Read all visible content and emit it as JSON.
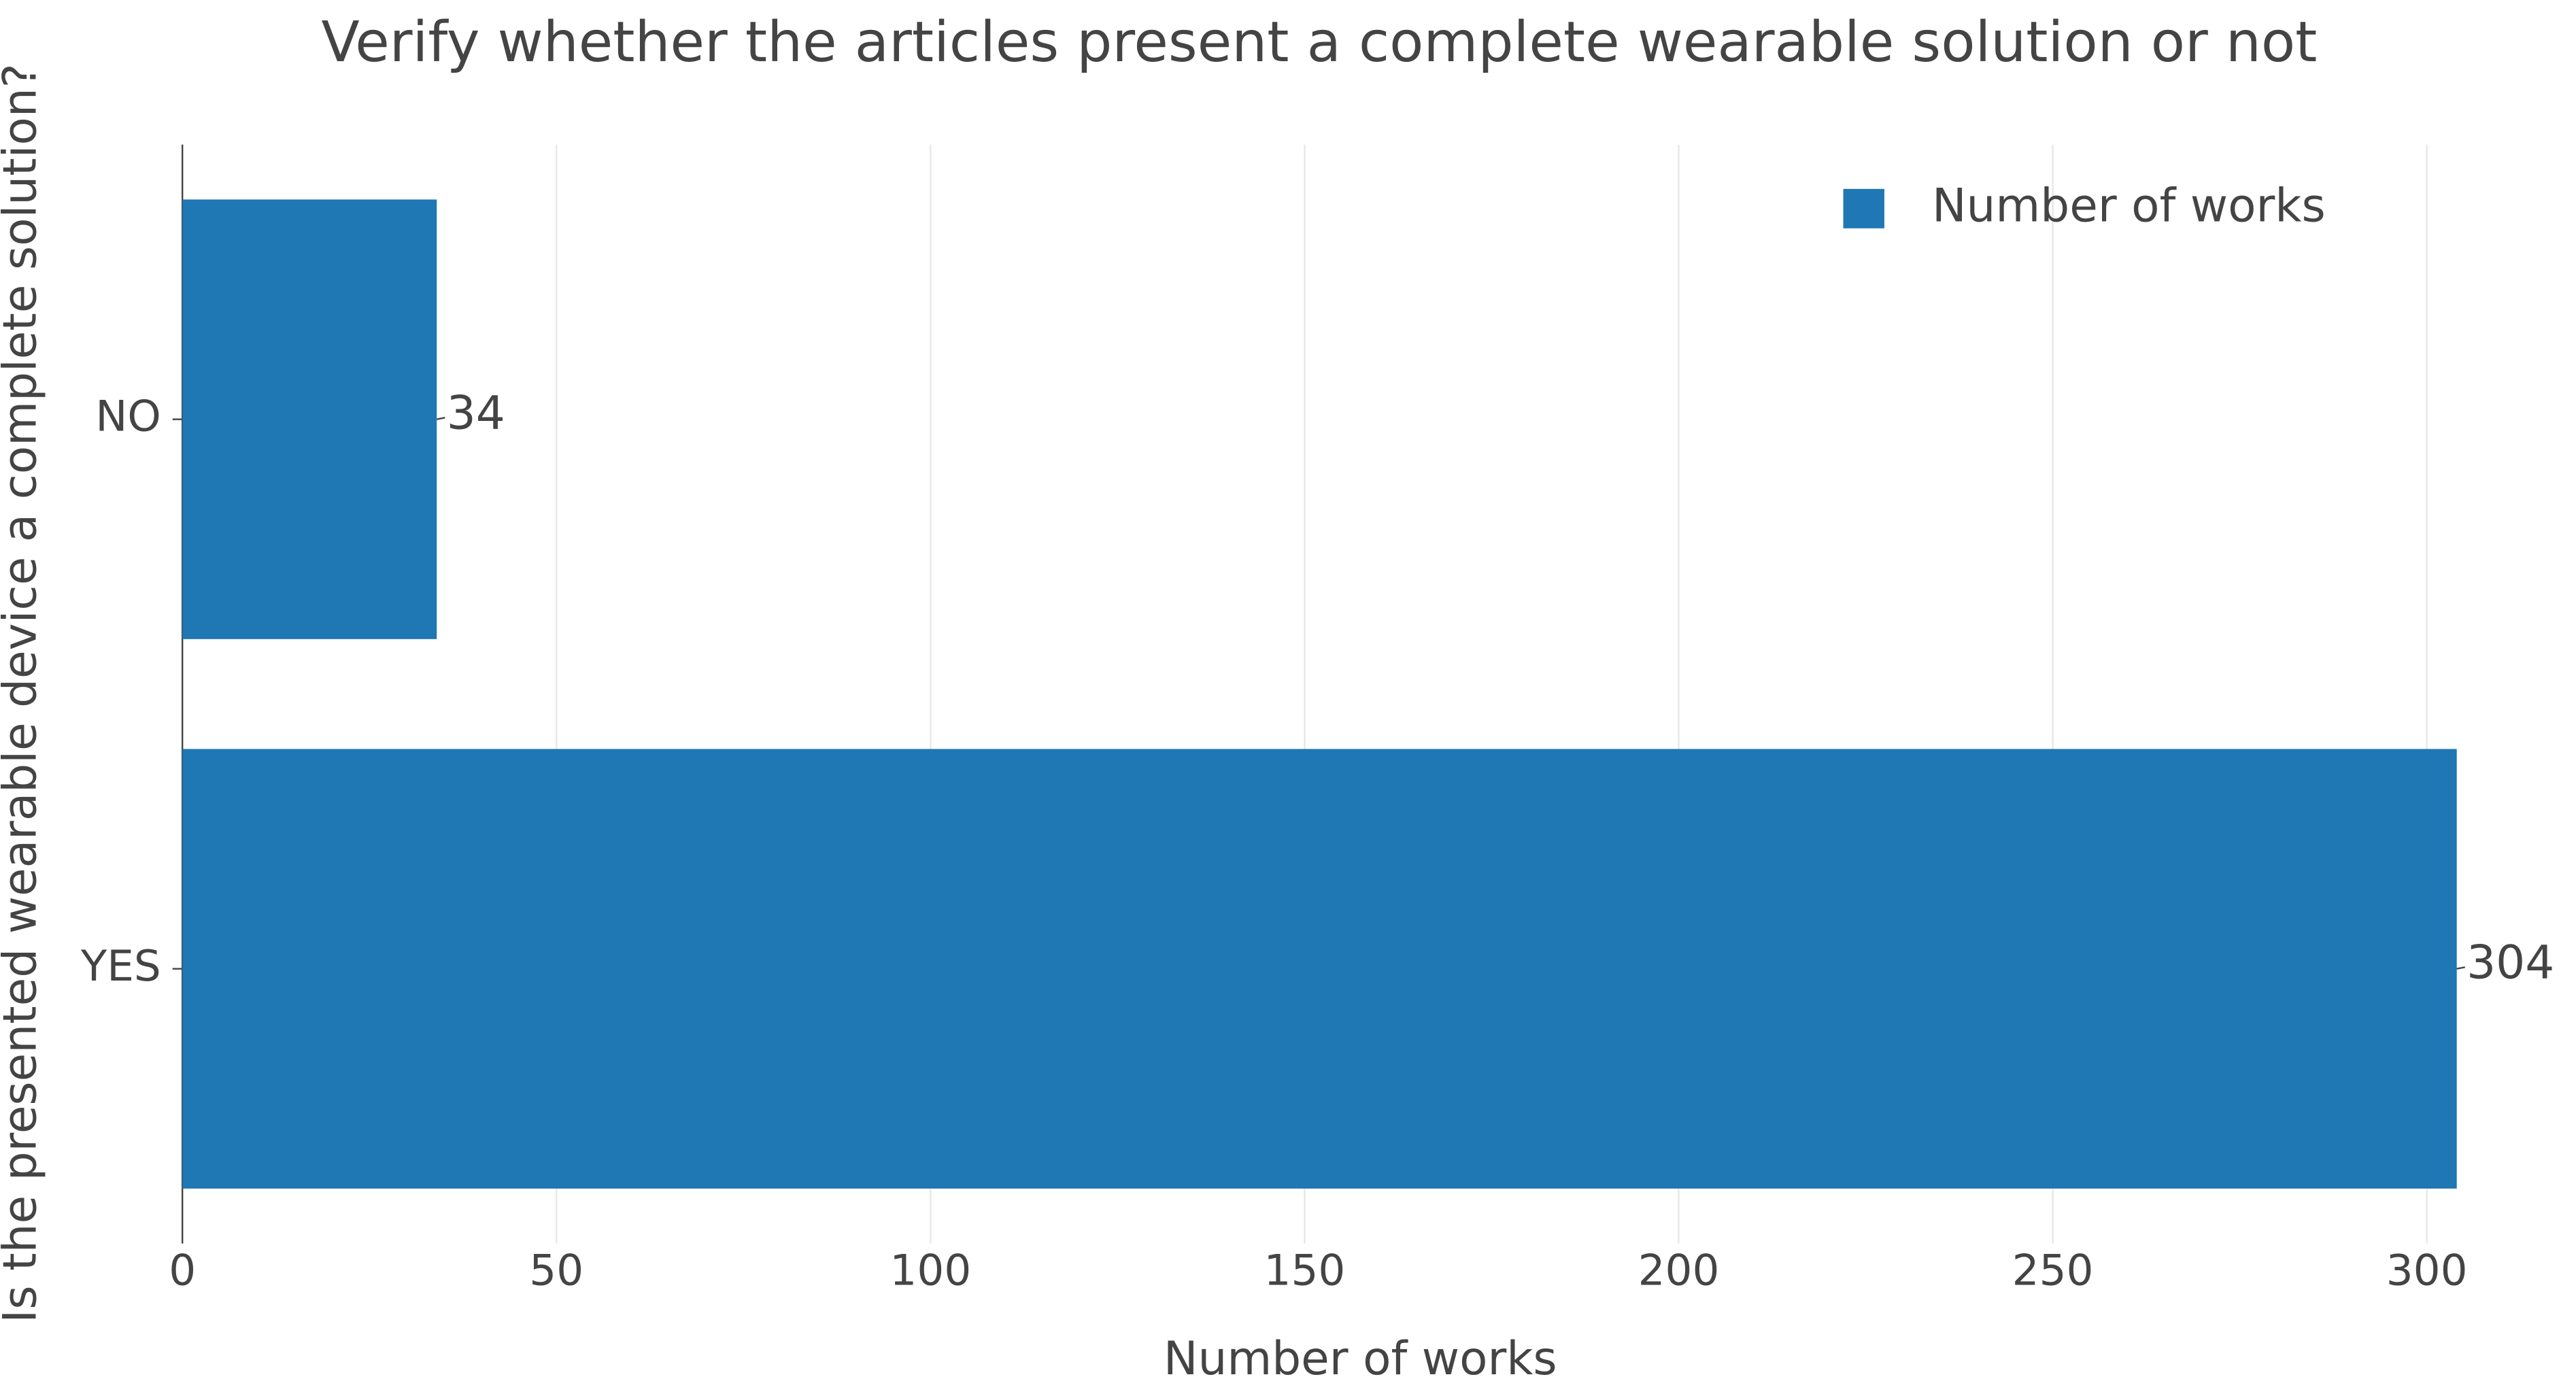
{
  "chart_data": {
    "type": "barh",
    "title": "Verify whether the articles present a complete wearable solution or not",
    "xlabel": "Number of works",
    "ylabel": "Is the presented wearable device a complete solution?",
    "categories": [
      "NO",
      "YES"
    ],
    "series": [
      {
        "name": "Number of works",
        "color": "#1f77b4",
        "values": [
          34,
          304
        ]
      }
    ],
    "xlim": [
      0,
      305
    ],
    "xticks": [
      0,
      50,
      100,
      150,
      200,
      250,
      300
    ],
    "grid": true,
    "legend": "top-right"
  }
}
